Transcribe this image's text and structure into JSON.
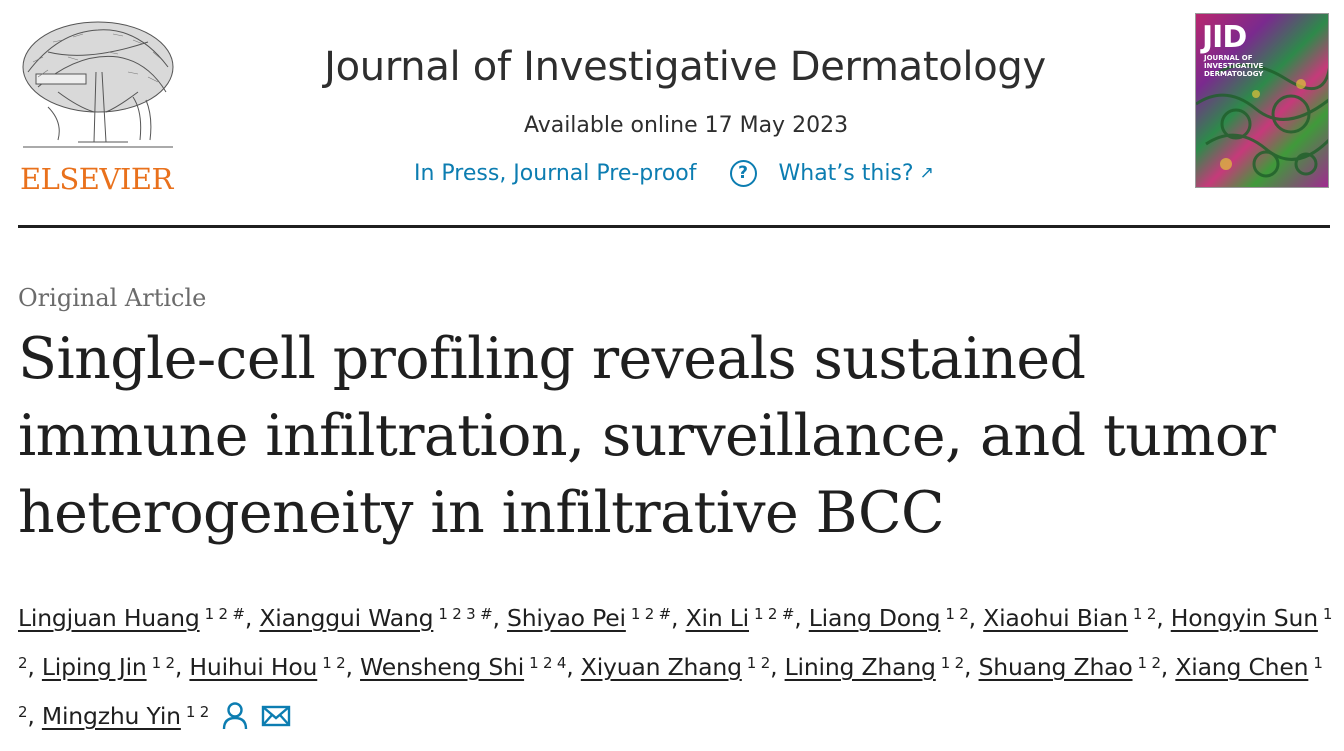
{
  "header": {
    "publisher": "ELSEVIER",
    "journal_title": "Journal of Investigative Dermatology",
    "availability": "Available online 17 May 2023",
    "status_link": "In Press, Journal Pre-proof",
    "help_link": "What’s this?",
    "help_icon_glyph": "?",
    "external_icon_glyph": "↗",
    "cover": {
      "acronym": "JID",
      "subtitle": "JOURNAL OF INVESTIGATIVE DERMATOLOGY"
    }
  },
  "article": {
    "type": "Original Article",
    "title": "Single-cell profiling reveals sustained immune infiltration, surveillance, and tumor heterogeneity in infiltrative BCC",
    "authors": [
      {
        "name": "Lingjuan Huang",
        "sup": "1 2 #"
      },
      {
        "name": "Xianggui Wang",
        "sup": "1 2 3 #"
      },
      {
        "name": "Shiyao Pei",
        "sup": "1 2 #"
      },
      {
        "name": "Xin Li",
        "sup": "1 2 #"
      },
      {
        "name": "Liang Dong",
        "sup": "1 2"
      },
      {
        "name": "Xiaohui Bian",
        "sup": "1 2"
      },
      {
        "name": "Hongyin Sun",
        "sup": "1 2"
      },
      {
        "name": "Liping Jin",
        "sup": "1 2"
      },
      {
        "name": "Huihui Hou",
        "sup": "1 2"
      },
      {
        "name": "Wensheng Shi",
        "sup": "1 2 4"
      },
      {
        "name": "Xiyuan Zhang",
        "sup": "1 2"
      },
      {
        "name": "Lining Zhang",
        "sup": "1 2"
      },
      {
        "name": "Shuang Zhao",
        "sup": "1 2"
      },
      {
        "name": "Xiang Chen",
        "sup": "1 2"
      },
      {
        "name": "Mingzhu Yin",
        "sup": "1 2"
      }
    ],
    "separator": ",",
    "icons": [
      "person-icon",
      "mail-icon"
    ]
  },
  "colors": {
    "publisher_orange": "#e9711c",
    "link_blue": "#0c7db1",
    "text": "#1f1f1f",
    "muted": "#6b6b6b"
  }
}
